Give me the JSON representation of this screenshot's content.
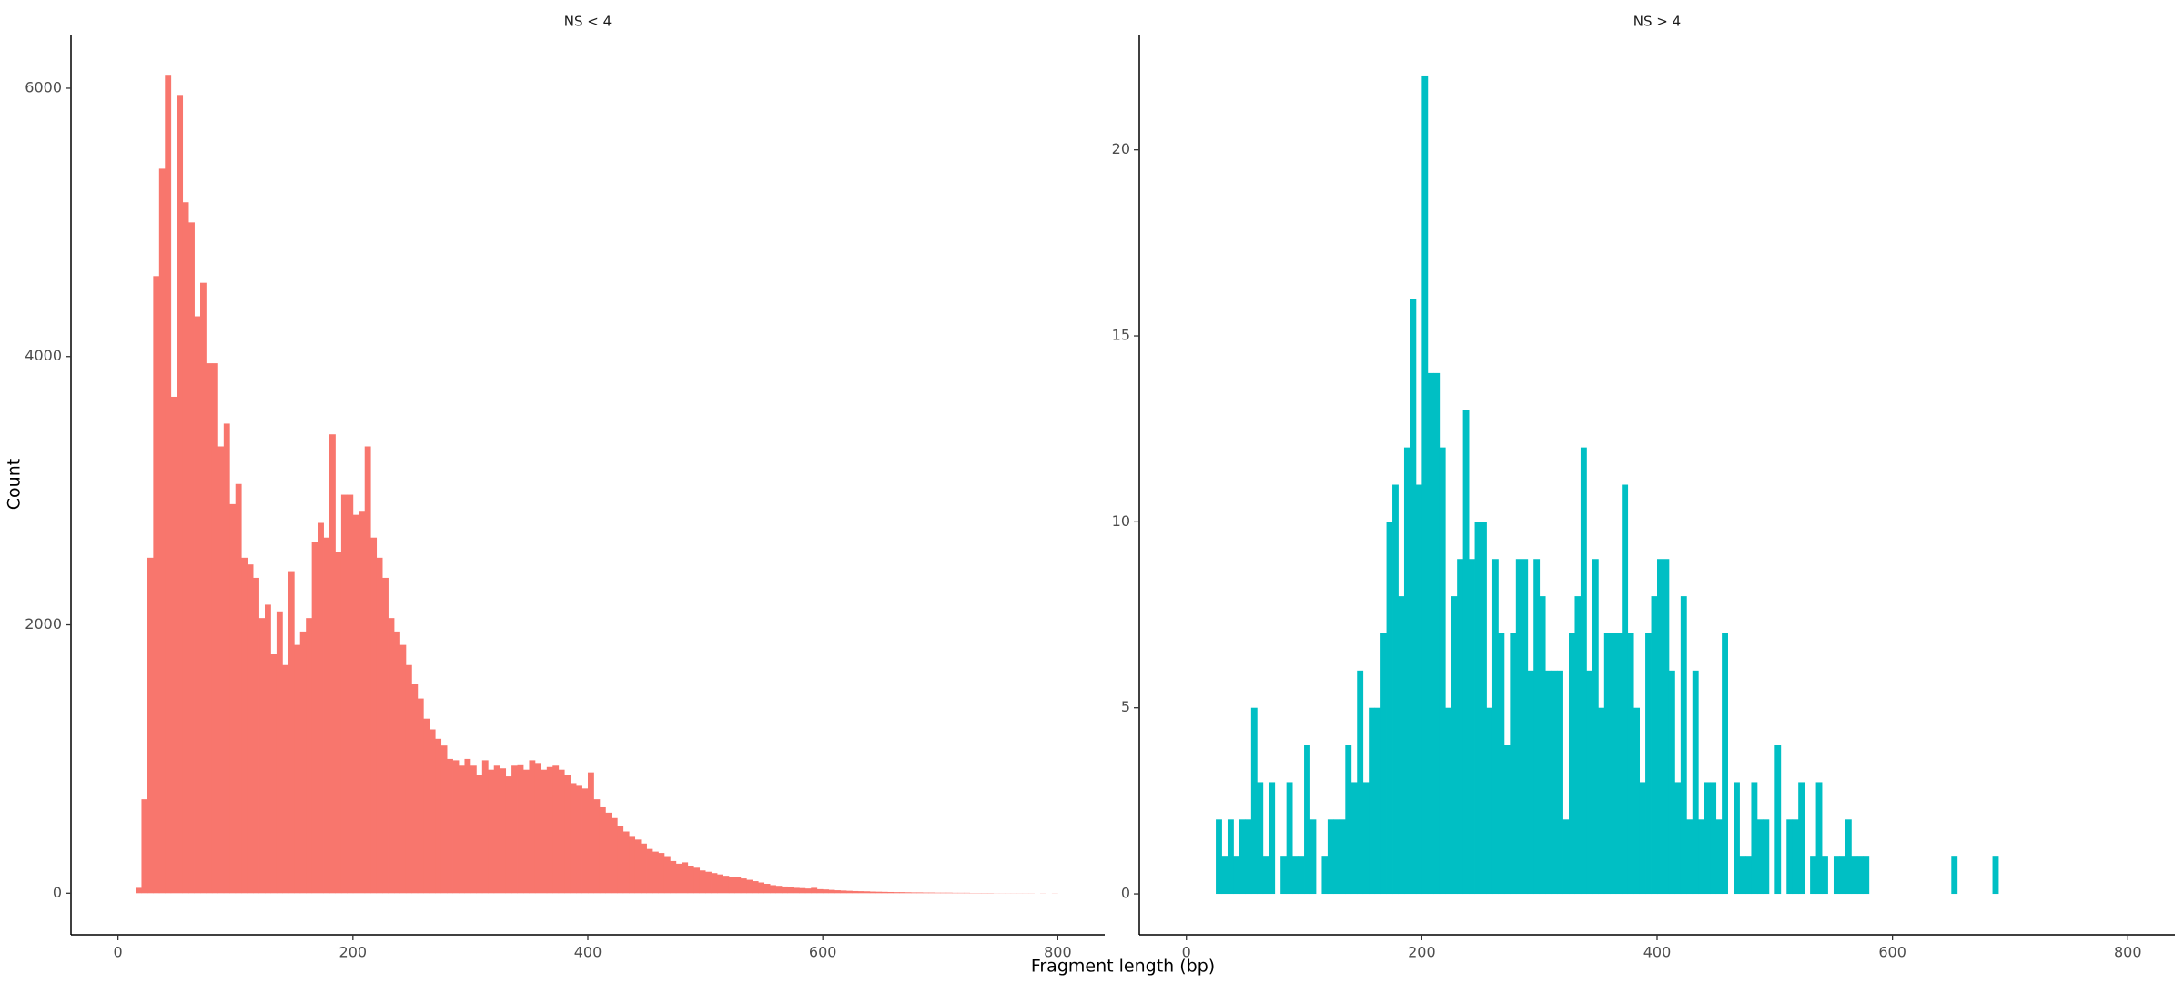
{
  "chart_data": [
    {
      "type": "histogram",
      "title": "NS < 4",
      "color": "#f8766d",
      "xlabel": "Fragment length (bp)",
      "ylabel": "Count",
      "xlim": [
        -40,
        840
      ],
      "ylim": [
        -310,
        6400
      ],
      "xticks": [
        0,
        200,
        400,
        600,
        800
      ],
      "yticks": [
        0,
        2000,
        4000,
        6000
      ],
      "bins": [
        15,
        20,
        25,
        30,
        35,
        40,
        45,
        50,
        55,
        60,
        65,
        70,
        75,
        80,
        85,
        90,
        95,
        100,
        105,
        110,
        115,
        120,
        125,
        130,
        135,
        140,
        145,
        150,
        155,
        160,
        165,
        170,
        175,
        180,
        185,
        190,
        195,
        200,
        205,
        210,
        215,
        220,
        225,
        230,
        235,
        240,
        245,
        250,
        255,
        260,
        265,
        270,
        275,
        280,
        285,
        290,
        295,
        300,
        305,
        310,
        315,
        320,
        325,
        330,
        335,
        340,
        345,
        350,
        355,
        360,
        365,
        370,
        375,
        380,
        385,
        390,
        395,
        400,
        405,
        410,
        415,
        420,
        425,
        430,
        435,
        440,
        445,
        450,
        455,
        460,
        465,
        470,
        475,
        480,
        485,
        490,
        495,
        500,
        505,
        510,
        515,
        520,
        525,
        530,
        535,
        540,
        545,
        550,
        555,
        560,
        565,
        570,
        575,
        580,
        585,
        590,
        595,
        600,
        605,
        610,
        615,
        620,
        625,
        630,
        635,
        640,
        645,
        650,
        655,
        660,
        665,
        670,
        675,
        680,
        685,
        690,
        695,
        700,
        705,
        710,
        715,
        720,
        725,
        730,
        735,
        740,
        745,
        750,
        755,
        760,
        765,
        770,
        775,
        780,
        785,
        790,
        795,
        800
      ],
      "values": [
        40,
        700,
        2500,
        4600,
        5400,
        6100,
        3700,
        5950,
        5150,
        5000,
        4300,
        4550,
        3950,
        3950,
        3330,
        3500,
        2900,
        3050,
        2500,
        2450,
        2350,
        2050,
        2150,
        1780,
        2100,
        1700,
        2400,
        1850,
        1950,
        2050,
        2620,
        2760,
        2650,
        3420,
        2540,
        2970,
        2970,
        2820,
        2850,
        3330,
        2650,
        2500,
        2350,
        2050,
        1950,
        1850,
        1700,
        1560,
        1450,
        1300,
        1220,
        1150,
        1100,
        1000,
        990,
        950,
        1000,
        950,
        880,
        990,
        920,
        950,
        930,
        870,
        950,
        960,
        920,
        990,
        970,
        920,
        940,
        950,
        920,
        880,
        820,
        800,
        780,
        900,
        700,
        640,
        600,
        560,
        500,
        460,
        420,
        400,
        370,
        330,
        310,
        300,
        270,
        240,
        220,
        230,
        200,
        190,
        170,
        160,
        150,
        140,
        130,
        120,
        120,
        110,
        100,
        90,
        80,
        70,
        60,
        55,
        50,
        45,
        40,
        38,
        35,
        40,
        30,
        28,
        25,
        22,
        20,
        18,
        16,
        15,
        14,
        12,
        11,
        10,
        9,
        8,
        8,
        7,
        6,
        6,
        5,
        5,
        4,
        4,
        4,
        3,
        3,
        3,
        2,
        2,
        2,
        2,
        1,
        1,
        1,
        1,
        1,
        1,
        1,
        0,
        1,
        0,
        1
      ]
    },
    {
      "type": "histogram",
      "title": "NS > 4",
      "color": "#00bfc4",
      "xlim": [
        -40,
        840
      ],
      "ylim": [
        -1.1,
        23.1
      ],
      "xticks": [
        0,
        200,
        400,
        600,
        800
      ],
      "yticks": [
        0,
        5,
        10,
        15,
        20
      ],
      "bins": [
        25,
        30,
        35,
        40,
        45,
        50,
        55,
        60,
        65,
        70,
        75,
        80,
        85,
        90,
        95,
        100,
        105,
        110,
        115,
        120,
        125,
        130,
        135,
        140,
        145,
        150,
        155,
        160,
        165,
        170,
        175,
        180,
        185,
        190,
        195,
        200,
        205,
        210,
        215,
        220,
        225,
        230,
        235,
        240,
        245,
        250,
        255,
        260,
        265,
        270,
        275,
        280,
        285,
        290,
        295,
        300,
        305,
        310,
        315,
        320,
        325,
        330,
        335,
        340,
        345,
        350,
        355,
        360,
        365,
        370,
        375,
        380,
        385,
        390,
        395,
        400,
        405,
        410,
        415,
        420,
        425,
        430,
        435,
        440,
        445,
        450,
        455,
        460,
        465,
        470,
        475,
        480,
        485,
        490,
        495,
        500,
        505,
        510,
        515,
        520,
        525,
        530,
        535,
        540,
        545,
        550,
        555,
        560,
        565,
        570,
        575,
        580,
        585,
        590,
        595,
        600,
        605,
        610,
        615,
        620,
        625,
        630,
        635,
        640,
        645,
        650,
        655,
        660,
        665,
        670,
        675,
        680,
        685,
        690
      ],
      "values": [
        2,
        1,
        2,
        1,
        2,
        2,
        5,
        3,
        1,
        3,
        0,
        1,
        3,
        1,
        1,
        4,
        2,
        0,
        1,
        2,
        2,
        2,
        4,
        3,
        6,
        3,
        5,
        5,
        7,
        10,
        11,
        8,
        12,
        16,
        11,
        22,
        14,
        14,
        12,
        5,
        8,
        9,
        13,
        9,
        10,
        10,
        5,
        9,
        7,
        4,
        7,
        9,
        9,
        6,
        9,
        8,
        6,
        6,
        6,
        2,
        7,
        8,
        12,
        6,
        9,
        5,
        7,
        7,
        7,
        11,
        7,
        5,
        3,
        7,
        8,
        9,
        9,
        6,
        3,
        8,
        2,
        6,
        2,
        3,
        3,
        2,
        7,
        0,
        3,
        1,
        1,
        3,
        2,
        2,
        0,
        4,
        0,
        2,
        2,
        3,
        0,
        1,
        3,
        1,
        0,
        1,
        1,
        2,
        1,
        1,
        1,
        0,
        0,
        0,
        0,
        0,
        0,
        0,
        0,
        0,
        0,
        0,
        0,
        0,
        0,
        1,
        0,
        0,
        0,
        0,
        0,
        0,
        1
      ]
    }
  ]
}
